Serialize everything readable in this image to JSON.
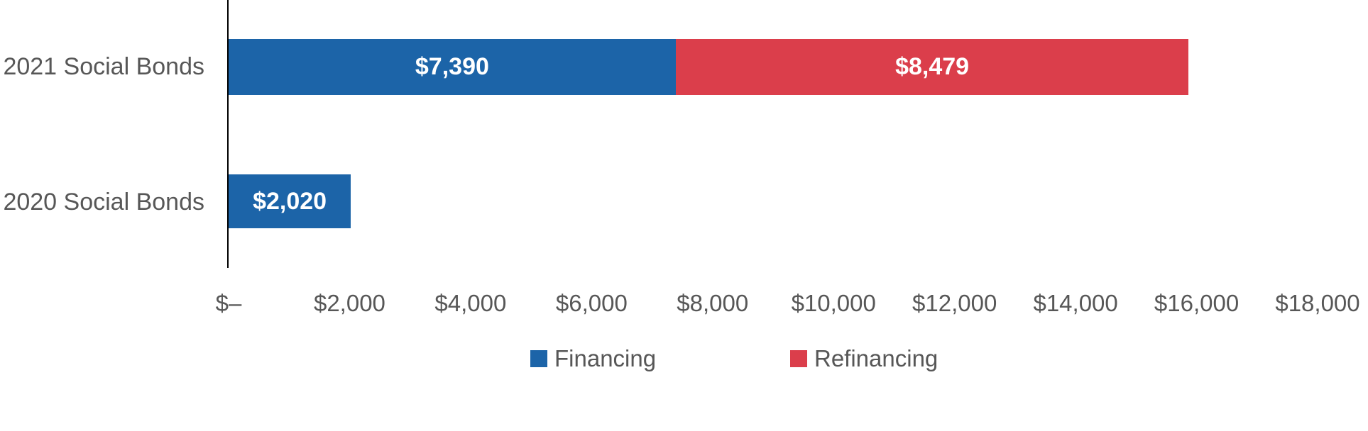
{
  "chart_data": {
    "type": "bar",
    "orientation": "horizontal",
    "stacked": true,
    "title": "",
    "categories": [
      "2021 Social Bonds",
      "2020 Social Bonds"
    ],
    "series": [
      {
        "name": "Financing",
        "color": "#1C64A8",
        "values": [
          7390,
          2020
        ],
        "data_labels": [
          "$7,390",
          "$2,020"
        ]
      },
      {
        "name": "Refinancing",
        "color": "#DB3E4B",
        "values": [
          8479,
          0
        ],
        "data_labels": [
          "$8,479",
          ""
        ]
      }
    ],
    "xlim": [
      0,
      18000
    ],
    "x_tick_interval": 2000,
    "x_tick_labels": [
      "$–",
      "$2,000",
      "$4,000",
      "$6,000",
      "$8,000",
      "$10,000",
      "$12,000",
      "$14,000",
      "$16,000",
      "$18,000"
    ],
    "grid": false,
    "legend_position": "bottom",
    "legend": [
      "Financing",
      "Refinancing"
    ]
  },
  "colors": {
    "financing_blue": "#1C64A8",
    "refinancing_red": "#DB3E4B",
    "axis_text": "#575757",
    "axis_line": "#000000",
    "data_label_text": "#FFFFFF",
    "background": "#FFFFFF"
  }
}
